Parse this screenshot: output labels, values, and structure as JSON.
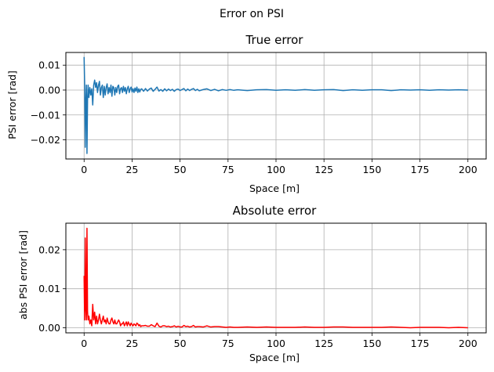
{
  "figure": {
    "suptitle": "Error on PSI"
  },
  "chart_data": [
    {
      "type": "line",
      "title": "True error",
      "xlabel": "Space [m]",
      "ylabel": "PSI error [rad]",
      "xlim": [
        -9.5,
        209.5
      ],
      "ylim": [
        -0.0277,
        0.0151
      ],
      "xticks": [
        0,
        25,
        50,
        75,
        100,
        125,
        150,
        175,
        200
      ],
      "xtick_labels": [
        "0",
        "25",
        "50",
        "75",
        "100",
        "125",
        "150",
        "175",
        "200"
      ],
      "yticks": [
        0.01,
        0.0,
        -0.01,
        -0.02
      ],
      "ytick_labels": [
        "0.01",
        "0.00",
        "−0.01",
        "−0.02"
      ],
      "grid": true,
      "legend": false,
      "series": [
        {
          "color": "#1f77b4",
          "x": [
            0,
            0.3,
            0.6,
            0.9,
            1.2,
            1.5,
            1.8,
            2.1,
            2.5,
            3,
            3.5,
            4,
            4.5,
            5,
            5.5,
            6,
            6.5,
            7,
            7.5,
            8,
            8.5,
            9,
            9.5,
            10,
            10.5,
            11,
            11.5,
            12,
            12.5,
            13,
            13.5,
            14,
            14.5,
            15,
            15.5,
            16,
            16.5,
            17,
            17.5,
            18,
            18.5,
            19,
            19.5,
            20,
            20.5,
            21,
            21.5,
            22,
            22.5,
            23,
            23.5,
            24,
            24.5,
            25,
            25.5,
            26,
            26.5,
            27,
            27.5,
            28,
            28.5,
            29,
            29.5,
            30,
            31,
            32,
            33,
            34,
            35,
            36,
            37,
            38,
            39,
            40,
            41,
            42,
            43,
            44,
            45,
            46,
            47,
            48,
            49,
            50,
            51,
            52,
            53,
            54,
            55,
            56,
            57,
            58,
            59,
            60,
            62,
            64,
            66,
            68,
            70,
            72,
            74,
            76,
            78,
            80,
            85,
            90,
            95,
            100,
            105,
            110,
            115,
            120,
            125,
            130,
            135,
            140,
            145,
            150,
            155,
            160,
            165,
            170,
            175,
            180,
            185,
            190,
            195,
            200
          ],
          "y": [
            0.0133,
            0.002,
            -0.023,
            -0.005,
            0.002,
            -0.0255,
            -0.004,
            0.002,
            -0.003,
            0.001,
            -0.002,
            0.0005,
            -0.006,
            0.002,
            0.004,
            0.001,
            0.003,
            -0.001,
            0.002,
            0.0035,
            -0.002,
            0.001,
            0.002,
            -0.003,
            0.0015,
            -0.002,
            0.001,
            0.0025,
            -0.0015,
            0.001,
            -0.001,
            0.002,
            -0.0025,
            0.0015,
            0.001,
            -0.002,
            0.001,
            -0.001,
            0.0015,
            0.002,
            -0.0015,
            0.0005,
            0.001,
            -0.001,
            0.0015,
            -0.0005,
            0.001,
            -0.0015,
            0.0005,
            0.0015,
            -0.001,
            0.0005,
            0.0012,
            -0.0008,
            0.0005,
            -0.001,
            0.0008,
            -0.0005,
            0.0012,
            -0.001,
            0.0005,
            -0.0008,
            0.0003,
            0.0005,
            -0.0005,
            0.0006,
            -0.0004,
            0.0004,
            0.0008,
            -0.0005,
            0.0003,
            0.0012,
            -0.0004,
            0.0002,
            -0.0005,
            0.0005,
            -0.0003,
            0.0004,
            -0.0002,
            0.0003,
            -0.0005,
            0.0002,
            0.0004,
            -0.0002,
            0.0002,
            0.0006,
            -0.0003,
            0.0004,
            -0.0002,
            0.0003,
            0.0006,
            -0.0002,
            0.0003,
            -0.0003,
            0.0002,
            0.0005,
            -0.0002,
            0.0003,
            -0.0003,
            0.0002,
            -0.0001,
            0.0002,
            -0.0001,
            0.0001,
            -0.0002,
            0.0001,
            0.0002,
            -0.0001,
            0.0001,
            -0.0001,
            0.0002,
            -0.0001,
            0.0001,
            0.0002,
            -0.0002,
            0.0001,
            -0.0001,
            0.0001,
            0.0001,
            -0.0002,
            0.0001,
            0.0,
            0.0001,
            -0.0001,
            0.0001,
            0.0,
            0.0001,
            0.0
          ]
        }
      ]
    },
    {
      "type": "line",
      "title": "Absolute error",
      "xlabel": "Space [m]",
      "ylabel": "abs PSI error [rad]",
      "xlim": [
        -9.5,
        209.5
      ],
      "ylim": [
        -0.0013,
        0.0268
      ],
      "xticks": [
        0,
        25,
        50,
        75,
        100,
        125,
        150,
        175,
        200
      ],
      "xtick_labels": [
        "0",
        "25",
        "50",
        "75",
        "100",
        "125",
        "150",
        "175",
        "200"
      ],
      "yticks": [
        0.02,
        0.01,
        0.0
      ],
      "ytick_labels": [
        "0.02",
        "0.01",
        "0.00"
      ],
      "grid": true,
      "legend": false,
      "series": [
        {
          "color": "#ff0000",
          "x": [
            0,
            0.3,
            0.6,
            0.9,
            1.2,
            1.5,
            1.8,
            2.1,
            2.5,
            3,
            3.5,
            4,
            4.5,
            5,
            5.5,
            6,
            6.5,
            7,
            7.5,
            8,
            8.5,
            9,
            9.5,
            10,
            10.5,
            11,
            11.5,
            12,
            12.5,
            13,
            13.5,
            14,
            14.5,
            15,
            15.5,
            16,
            16.5,
            17,
            17.5,
            18,
            18.5,
            19,
            19.5,
            20,
            20.5,
            21,
            21.5,
            22,
            22.5,
            23,
            23.5,
            24,
            24.5,
            25,
            25.5,
            26,
            26.5,
            27,
            27.5,
            28,
            28.5,
            29,
            29.5,
            30,
            31,
            32,
            33,
            34,
            35,
            36,
            37,
            38,
            39,
            40,
            41,
            42,
            43,
            44,
            45,
            46,
            47,
            48,
            49,
            50,
            51,
            52,
            53,
            54,
            55,
            56,
            57,
            58,
            59,
            60,
            62,
            64,
            66,
            68,
            70,
            72,
            74,
            76,
            78,
            80,
            85,
            90,
            95,
            100,
            105,
            110,
            115,
            120,
            125,
            130,
            135,
            140,
            145,
            150,
            155,
            160,
            165,
            170,
            175,
            180,
            185,
            190,
            195,
            200
          ],
          "y": [
            0.0133,
            0.002,
            0.023,
            0.005,
            0.002,
            0.0255,
            0.004,
            0.002,
            0.003,
            0.001,
            0.002,
            0.0005,
            0.006,
            0.002,
            0.004,
            0.001,
            0.003,
            0.001,
            0.002,
            0.0035,
            0.002,
            0.001,
            0.002,
            0.003,
            0.0015,
            0.002,
            0.001,
            0.0025,
            0.0015,
            0.001,
            0.001,
            0.002,
            0.0025,
            0.0015,
            0.001,
            0.002,
            0.001,
            0.001,
            0.0015,
            0.002,
            0.0015,
            0.0005,
            0.001,
            0.001,
            0.0015,
            0.0005,
            0.001,
            0.0015,
            0.0005,
            0.0015,
            0.001,
            0.0005,
            0.0012,
            0.0008,
            0.0005,
            0.001,
            0.0008,
            0.0005,
            0.0012,
            0.001,
            0.0005,
            0.0008,
            0.0003,
            0.0005,
            0.0005,
            0.0006,
            0.0004,
            0.0004,
            0.0008,
            0.0005,
            0.0003,
            0.0012,
            0.0004,
            0.0002,
            0.0005,
            0.0005,
            0.0003,
            0.0004,
            0.0002,
            0.0003,
            0.0005,
            0.0002,
            0.0004,
            0.0002,
            0.0002,
            0.0006,
            0.0003,
            0.0004,
            0.0002,
            0.0003,
            0.0006,
            0.0002,
            0.0003,
            0.0003,
            0.0002,
            0.0005,
            0.0002,
            0.0003,
            0.0003,
            0.0002,
            0.0001,
            0.0002,
            0.0001,
            0.0001,
            0.0002,
            0.0001,
            0.0002,
            0.0001,
            0.0001,
            0.0001,
            0.0002,
            0.0001,
            0.0001,
            0.0002,
            0.0002,
            0.0001,
            0.0001,
            0.0001,
            0.0001,
            0.0002,
            0.0001,
            0.0,
            0.0001,
            0.0001,
            0.0001,
            0.0,
            0.0001,
            0.0
          ]
        }
      ]
    }
  ]
}
